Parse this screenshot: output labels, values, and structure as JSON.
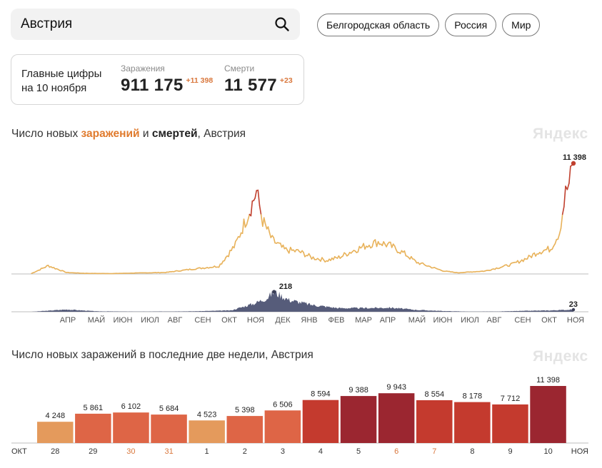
{
  "search": {
    "value": "Австрия"
  },
  "regions": [
    "Белгородская область",
    "Россия",
    "Мир"
  ],
  "summary": {
    "title_line1": "Главные цифры",
    "title_line2": "на 10 ноября",
    "infections_label": "Заражения",
    "infections_value": "911 175",
    "infections_delta": "+11 398",
    "deaths_label": "Смерти",
    "deaths_value": "11 577",
    "deaths_delta": "+23"
  },
  "chart1": {
    "title_prefix": "Число новых ",
    "title_infections": "заражений",
    "title_and": " и ",
    "title_deaths": "смертей",
    "title_suffix": ", Австрия",
    "watermark": "Яндекс",
    "peak_infections_label": "11 398",
    "peak_deaths_label": "218",
    "last_deaths_label": "23",
    "months": [
      "АПР",
      "МАЙ",
      "ИЮН",
      "ИЮЛ",
      "АВГ",
      "СЕН",
      "ОКТ",
      "НОЯ",
      "ДЕК",
      "ЯНВ",
      "ФЕВ",
      "МАР",
      "АПР",
      "МАЙ",
      "ИЮН",
      "ИЮЛ",
      "АВГ",
      "СЕН",
      "ОКТ",
      "НОЯ"
    ]
  },
  "chart2": {
    "title": "Число новых заражений в последние две недели, Австрия",
    "watermark": "Яндекс",
    "start_month": "ОКТ",
    "end_month": "НОЯ"
  },
  "colors": {
    "infections_line": "#e8b25a",
    "infections_peak": "#c0402e",
    "deaths_area": "#565c7a",
    "bar_light": "#e49a5c",
    "bar_mid": "#de6546",
    "bar_dark": "#c43a2e",
    "bar_darkest": "#9b2630"
  },
  "chart_data": [
    {
      "type": "line",
      "title": "Число новых заражений и смертей, Австрия",
      "series": [
        {
          "name": "заражений",
          "x": [
            "2020-03-01",
            "2020-03-20",
            "2020-04-10",
            "2020-05-01",
            "2020-06-01",
            "2020-07-01",
            "2020-08-01",
            "2020-09-01",
            "2020-10-01",
            "2020-10-20",
            "2020-11-05",
            "2020-11-13",
            "2020-11-20",
            "2020-12-01",
            "2020-12-15",
            "2021-01-01",
            "2021-01-15",
            "2021-02-01",
            "2021-02-15",
            "2021-03-01",
            "2021-03-20",
            "2021-04-01",
            "2021-04-15",
            "2021-05-01",
            "2021-05-15",
            "2021-06-01",
            "2021-06-15",
            "2021-07-01",
            "2021-08-01",
            "2021-09-01",
            "2021-09-20",
            "2021-10-01",
            "2021-10-15",
            "2021-10-25",
            "2021-11-01",
            "2021-11-05",
            "2021-11-10"
          ],
          "values": [
            50,
            850,
            150,
            60,
            40,
            100,
            150,
            500,
            800,
            3000,
            6500,
            8500,
            5500,
            3500,
            2500,
            2300,
            1700,
            1400,
            1700,
            2300,
            3000,
            3300,
            2900,
            2100,
            1200,
            700,
            300,
            120,
            300,
            1000,
            1700,
            2300,
            2600,
            4300,
            8300,
            9300,
            11398
          ]
        },
        {
          "name": "смертей",
          "x": [
            "2020-03-01",
            "2020-04-10",
            "2020-05-15",
            "2020-07-01",
            "2020-09-01",
            "2020-10-15",
            "2020-11-10",
            "2020-11-25",
            "2020-12-03",
            "2020-12-20",
            "2021-01-15",
            "2021-02-15",
            "2021-03-15",
            "2021-04-15",
            "2021-05-15",
            "2021-06-15",
            "2021-07-15",
            "2021-08-15",
            "2021-09-15",
            "2021-10-15",
            "2021-11-10"
          ],
          "values": [
            0,
            25,
            5,
            2,
            5,
            15,
            90,
            150,
            218,
            130,
            75,
            40,
            40,
            45,
            20,
            8,
            2,
            3,
            10,
            15,
            23
          ]
        }
      ],
      "xlabel": "",
      "ylabel": ""
    },
    {
      "type": "bar",
      "title": "Число новых заражений в последние две недели, Австрия",
      "categories": [
        "28",
        "29",
        "30",
        "31",
        "1",
        "2",
        "3",
        "4",
        "5",
        "6",
        "7",
        "8",
        "9",
        "10"
      ],
      "values": [
        4248,
        5861,
        6102,
        5684,
        4523,
        5398,
        6506,
        8594,
        9388,
        9943,
        8554,
        8178,
        7712,
        11398
      ],
      "value_labels": [
        "4 248",
        "5 861",
        "6 102",
        "5 684",
        "4 523",
        "5 398",
        "6 506",
        "8 594",
        "9 388",
        "9 943",
        "8 554",
        "8 178",
        "7 712",
        "11 398"
      ],
      "weekend": [
        false,
        false,
        true,
        true,
        false,
        false,
        false,
        false,
        false,
        true,
        true,
        false,
        false,
        false
      ],
      "xlabel": "",
      "ylabel": ""
    }
  ]
}
